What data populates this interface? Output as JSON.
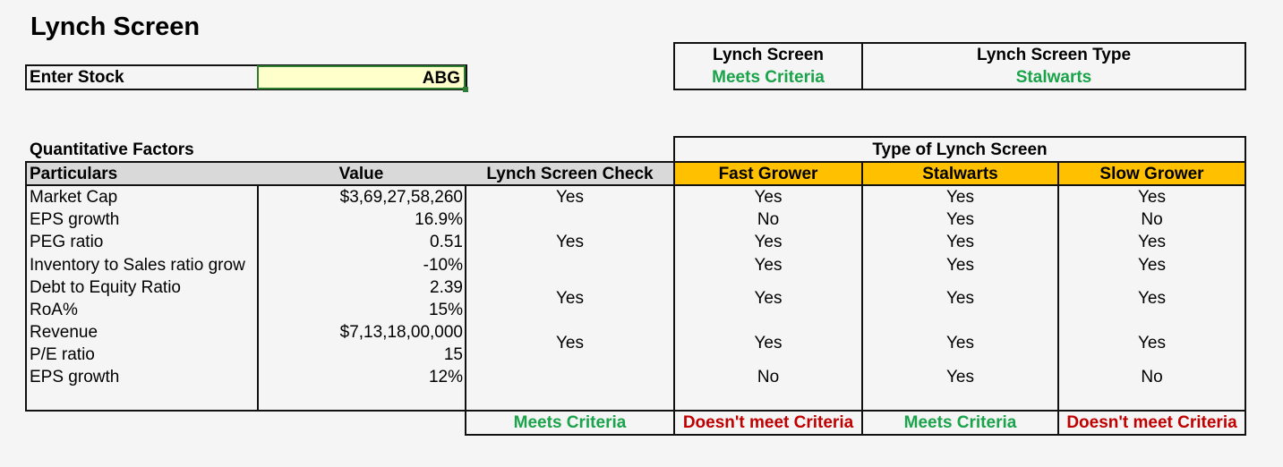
{
  "title": "Lynch Screen",
  "input": {
    "label": "Enter Stock",
    "value": "ABG"
  },
  "summary": {
    "screen_header": "Lynch Screen",
    "screen_value": "Meets Criteria",
    "type_header": "Lynch Screen Type",
    "type_value": "Stalwarts"
  },
  "quant": {
    "title": "Quantitative Factors",
    "type_title": "Type of Lynch Screen",
    "headers": {
      "particulars": "Particulars",
      "value": "Value",
      "check": "Lynch Screen Check",
      "fast": "Fast Grower",
      "stalwarts": "Stalwarts",
      "slow": "Slow Grower"
    },
    "rows": [
      {
        "particular": "Market Cap",
        "value": "$3,69,27,58,260"
      },
      {
        "particular": "EPS growth",
        "value": "16.9%"
      },
      {
        "particular": "PEG ratio",
        "value": "0.51"
      },
      {
        "particular": "Inventory to Sales ratio grow",
        "value": "-10%"
      },
      {
        "particular": "Debt to Equity Ratio",
        "value": "2.39"
      },
      {
        "particular": "RoA%",
        "value": "15%"
      },
      {
        "particular": "Revenue",
        "value": "$7,13,18,00,000"
      },
      {
        "particular": "P/E ratio",
        "value": "15"
      },
      {
        "particular": "EPS growth",
        "value": "12%"
      }
    ],
    "checks": [
      {
        "check": "Yes",
        "fast": "Yes",
        "stalwarts": "Yes",
        "slow": "Yes"
      },
      {
        "check": "",
        "fast": "No",
        "stalwarts": "Yes",
        "slow": "No"
      },
      {
        "check": "Yes",
        "fast": "Yes",
        "stalwarts": "Yes",
        "slow": "Yes"
      },
      {
        "check": "",
        "fast": "Yes",
        "stalwarts": "Yes",
        "slow": "Yes"
      },
      {
        "check": "Yes",
        "fast": "Yes",
        "stalwarts": "Yes",
        "slow": "Yes"
      },
      {
        "check": "Yes",
        "fast": "Yes",
        "stalwarts": "Yes",
        "slow": "Yes"
      },
      {
        "check": "",
        "fast": "No",
        "stalwarts": "Yes",
        "slow": "No"
      }
    ],
    "results": {
      "check": "Meets Criteria",
      "fast": "Doesn't meet Criteria",
      "stalwarts": "Meets Criteria",
      "slow": "Doesn't meet Criteria"
    }
  },
  "colors": {
    "header_orange": "#ffc000",
    "header_gray": "#d9d9d9",
    "input_fill": "#ffffcc",
    "meets": "#1aa34a",
    "fails": "#c00000"
  }
}
